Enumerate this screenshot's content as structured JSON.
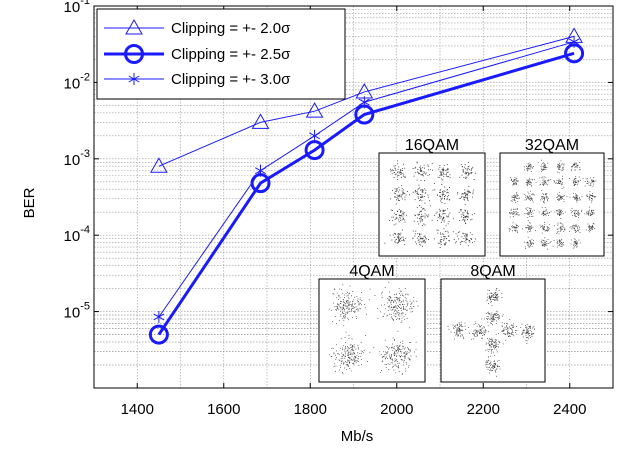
{
  "chart_data": {
    "type": "line",
    "xlabel": "Mb/s",
    "ylabel": "BER",
    "xlim": [
      1300,
      2500
    ],
    "ylim": [
      1e-06,
      0.1
    ],
    "yscale": "log",
    "xticks": [
      1400,
      1600,
      1800,
      2000,
      2200,
      2400
    ],
    "yticks": [
      {
        "value": 1e-05,
        "base": "10",
        "exp": "-5"
      },
      {
        "value": 0.0001,
        "base": "10",
        "exp": "-4"
      },
      {
        "value": 0.001,
        "base": "10",
        "exp": "-3"
      },
      {
        "value": 0.01,
        "base": "10",
        "exp": "-2"
      },
      {
        "value": 0.1,
        "base": "10",
        "exp": "-1"
      }
    ],
    "grid": true,
    "legend_position": "top-left",
    "color": "#1a1aff",
    "series": [
      {
        "name": "Clipping =  +- 2.0σ",
        "marker": "triangle",
        "line_width": 1,
        "x": [
          1450,
          1685,
          1810,
          1925,
          2410
        ],
        "y": [
          0.0008,
          0.003,
          0.0042,
          0.0075,
          0.04
        ]
      },
      {
        "name": "Clipping =  +- 2.5σ",
        "marker": "circle",
        "line_width": 3,
        "x": [
          1450,
          1685,
          1810,
          1925,
          2410
        ],
        "y": [
          5e-06,
          0.00048,
          0.0013,
          0.0038,
          0.024
        ]
      },
      {
        "name": "Clipping =  +- 3.0σ",
        "marker": "star",
        "line_width": 1,
        "x": [
          1450,
          1685,
          1810,
          1925,
          2410
        ],
        "y": [
          8.5e-06,
          0.0007,
          0.002,
          0.0055,
          0.034
        ]
      }
    ],
    "insets": [
      {
        "title": "16QAM",
        "order": 16
      },
      {
        "title": "32QAM",
        "order": 32
      },
      {
        "title": "4QAM",
        "order": 4
      },
      {
        "title": "8QAM",
        "order": 8
      }
    ]
  }
}
